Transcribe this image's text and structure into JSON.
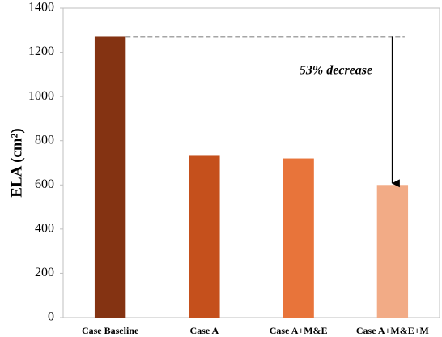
{
  "chart_data": {
    "type": "bar",
    "y_label": "ELA (cm²)",
    "categories": [
      "Case Baseline",
      "Case A",
      "Case A+M&E",
      "Case A+M&E+M"
    ],
    "values": [
      1270,
      735,
      720,
      600
    ],
    "colors": [
      "#843312",
      "#c5501c",
      "#e8743a",
      "#f2ab86"
    ],
    "ylim": [
      0,
      1400
    ],
    "yticks": [
      0,
      200,
      400,
      600,
      800,
      1000,
      1200,
      1400
    ],
    "annotation": "53% decrease",
    "grid": false
  }
}
